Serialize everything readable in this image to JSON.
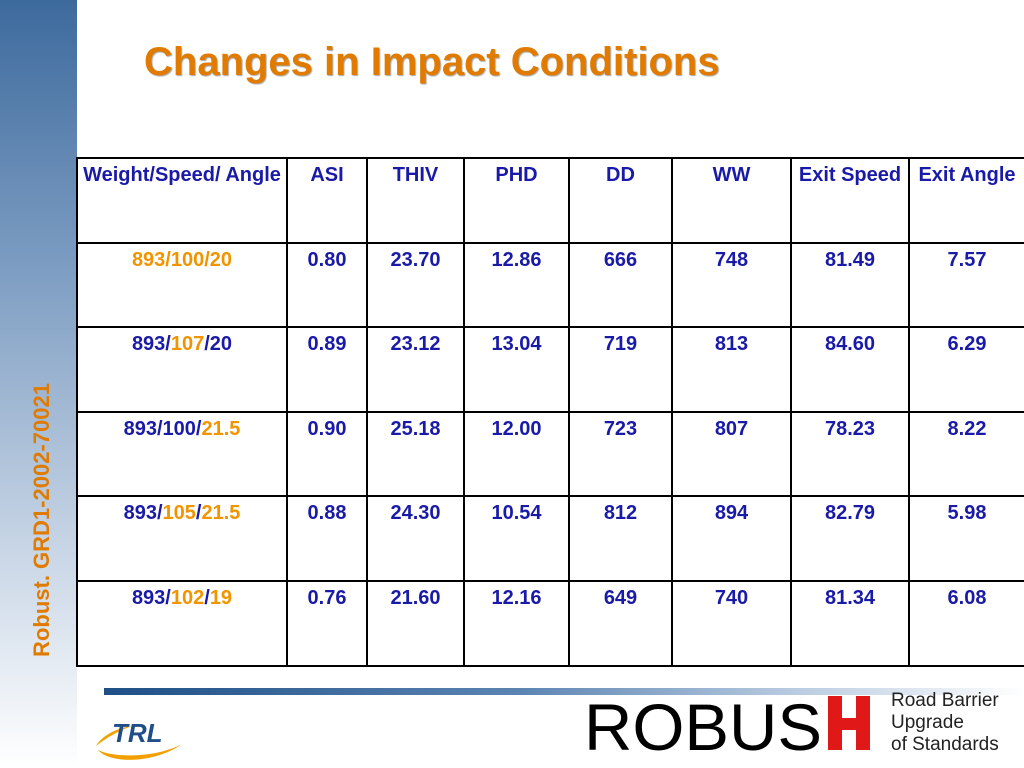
{
  "slide": {
    "title": "Changes in Impact Conditions",
    "sidebar_text": "Robust. GRD1-2002-70021",
    "accent_color": "#e07b00",
    "text_color": "#1a1aa8"
  },
  "table": {
    "headers": [
      "Weight/Speed/ Angle",
      "ASI",
      "THIV",
      "PHD",
      "DD",
      "WW",
      "Exit Speed",
      "Exit Angle"
    ],
    "rows": [
      {
        "condition": [
          {
            "text": "893/100/20",
            "highlight": true
          }
        ],
        "all_highlight": true,
        "values": [
          "0.80",
          "23.70",
          "12.86",
          "666",
          "748",
          "81.49",
          "7.57"
        ]
      },
      {
        "condition": [
          {
            "text": "893/",
            "highlight": false
          },
          {
            "text": "107",
            "highlight": true
          },
          {
            "text": "/20",
            "highlight": false
          }
        ],
        "all_highlight": false,
        "values": [
          "0.89",
          "23.12",
          "13.04",
          "719",
          "813",
          "84.60",
          "6.29"
        ]
      },
      {
        "condition": [
          {
            "text": "893/100/",
            "highlight": false
          },
          {
            "text": "21.5",
            "highlight": true
          }
        ],
        "all_highlight": false,
        "values": [
          "0.90",
          "25.18",
          "12.00",
          "723",
          "807",
          "78.23",
          "8.22"
        ]
      },
      {
        "condition": [
          {
            "text": "893/",
            "highlight": false
          },
          {
            "text": "105",
            "highlight": true
          },
          {
            "text": "/",
            "highlight": false
          },
          {
            "text": "21.5",
            "highlight": true
          }
        ],
        "all_highlight": false,
        "values": [
          "0.88",
          "24.30",
          "10.54",
          "812",
          "894",
          "82.79",
          "5.98"
        ]
      },
      {
        "condition": [
          {
            "text": "893/",
            "highlight": false
          },
          {
            "text": "102",
            "highlight": true
          },
          {
            "text": "/",
            "highlight": false
          },
          {
            "text": "19",
            "highlight": true
          }
        ],
        "all_highlight": false,
        "values": [
          "0.76",
          "21.60",
          "12.16",
          "649",
          "740",
          "81.34",
          "6.08"
        ]
      }
    ]
  },
  "footer": {
    "trl_logo_text": "TRL",
    "robust_logo_text": "ROBUS",
    "robust_tagline": [
      "Road Barrier",
      "Upgrade",
      "of Standards"
    ]
  }
}
